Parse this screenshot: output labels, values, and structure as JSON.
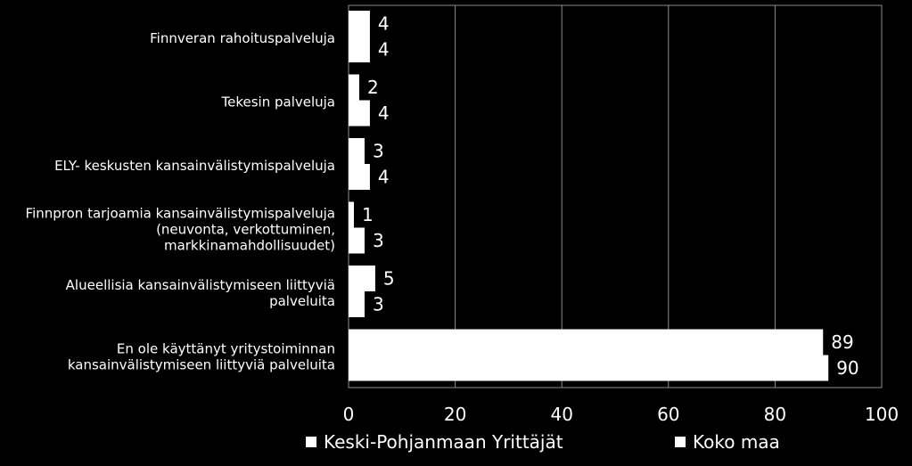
{
  "chart_data": {
    "type": "bar",
    "orientation": "horizontal",
    "categories": [
      "Finnveran rahoituspalveluja",
      "Tekesin palveluja",
      "ELY- keskusten kansainvälistymispalveluja",
      "Finnpron tarjoamia kansainvälistymispalveluja (neuvonta, verkottuminen, markkinamahdollisuudet)",
      "Alueellisia kansainvälistymiseen liittyviä palveluita",
      "En ole käyttänyt yritystoiminnan kansainvälistymiseen liittyviä palveluita"
    ],
    "category_lines": [
      [
        "Finnveran rahoituspalveluja"
      ],
      [
        "Tekesin palveluja"
      ],
      [
        "ELY- keskusten kansainvälistymispalveluja"
      ],
      [
        "Finnpron tarjoamia kansainvälistymispalveluja",
        "(neuvonta, verkottuminen,",
        "markkinamahdollisuudet)"
      ],
      [
        "Alueellisia kansainvälistymiseen liittyviä",
        "palveluita"
      ],
      [
        "En ole käyttänyt yritystoiminnan",
        "kansainvälistymiseen liittyviä palveluita"
      ]
    ],
    "series": [
      {
        "name": "Keski-Pohjanmaan Yrittäjät",
        "values": [
          4,
          2,
          3,
          1,
          5,
          89
        ]
      },
      {
        "name": "Koko maa",
        "values": [
          4,
          4,
          4,
          3,
          3,
          90
        ]
      }
    ],
    "xlim": [
      0,
      100
    ],
    "xticks": [
      0,
      20,
      40,
      60,
      80,
      100
    ],
    "grid": true,
    "legend": "bottom",
    "colors": {
      "background": "#000000",
      "bar": "#ffffff",
      "grid": "#8c8c8c",
      "text": "#ffffff"
    }
  }
}
